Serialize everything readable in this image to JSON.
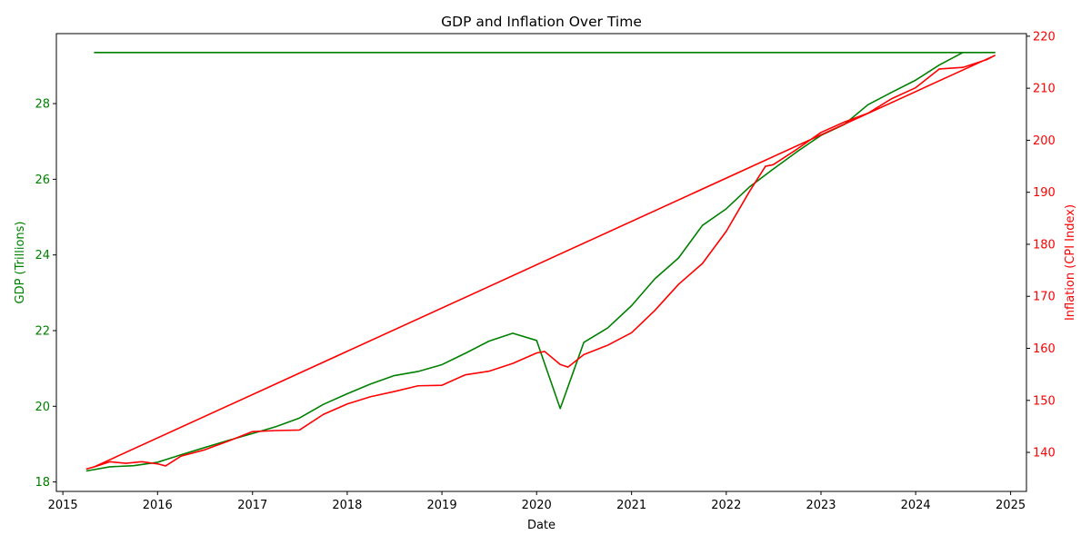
{
  "colors": {
    "gdp": "#008000",
    "inflation": "#ff0000",
    "axis": "#000000",
    "background": "#ffffff"
  },
  "chart_data": {
    "type": "line",
    "title": "GDP and Inflation Over Time",
    "xlabel": "Date",
    "ylabel_left": "GDP (Trillions)",
    "ylabel_right": "Inflation (CPI Index)",
    "grid": false,
    "x_axis": {
      "type": "date",
      "range": [
        "2014-12-07",
        "2025-03-03"
      ],
      "tick_labels": [
        "2015",
        "2016",
        "2017",
        "2018",
        "2019",
        "2020",
        "2021",
        "2022",
        "2023",
        "2024",
        "2025"
      ]
    },
    "y_left": {
      "range": [
        17.75,
        29.85
      ],
      "tick_labels": [
        "18",
        "20",
        "22",
        "24",
        "26",
        "28"
      ]
    },
    "y_right": {
      "range": [
        132.5,
        220.5
      ],
      "tick_labels": [
        "140",
        "150",
        "160",
        "170",
        "180",
        "190",
        "200",
        "210",
        "220"
      ]
    },
    "series": [
      {
        "name": "GDP (Trillions)",
        "axis": "left",
        "color": "#008000",
        "points": [
          [
            "2015-04-01",
            18.29
          ],
          [
            "2015-07-01",
            18.4
          ],
          [
            "2015-10-01",
            18.43
          ],
          [
            "2016-01-01",
            18.52
          ],
          [
            "2016-04-01",
            18.72
          ],
          [
            "2016-07-01",
            18.91
          ],
          [
            "2016-10-01",
            19.1
          ],
          [
            "2017-01-01",
            19.28
          ],
          [
            "2017-04-01",
            19.46
          ],
          [
            "2017-07-01",
            19.69
          ],
          [
            "2017-10-01",
            20.05
          ],
          [
            "2018-01-01",
            20.33
          ],
          [
            "2018-04-01",
            20.59
          ],
          [
            "2018-07-01",
            20.81
          ],
          [
            "2018-10-01",
            20.92
          ],
          [
            "2019-01-01",
            21.1
          ],
          [
            "2019-04-01",
            21.4
          ],
          [
            "2019-07-01",
            21.72
          ],
          [
            "2019-10-01",
            21.93
          ],
          [
            "2020-01-01",
            21.74
          ],
          [
            "2020-04-01",
            19.94
          ],
          [
            "2020-07-01",
            21.69
          ],
          [
            "2020-10-01",
            22.07
          ],
          [
            "2021-01-01",
            22.66
          ],
          [
            "2021-04-01",
            23.37
          ],
          [
            "2021-07-01",
            23.92
          ],
          [
            "2021-10-01",
            24.78
          ],
          [
            "2022-01-01",
            25.22
          ],
          [
            "2022-04-01",
            25.8
          ],
          [
            "2022-07-01",
            26.27
          ],
          [
            "2022-10-01",
            26.73
          ],
          [
            "2023-01-01",
            27.16
          ],
          [
            "2023-04-01",
            27.45
          ],
          [
            "2023-07-01",
            27.97
          ],
          [
            "2023-10-01",
            28.3
          ],
          [
            "2024-01-01",
            28.62
          ],
          [
            "2024-04-01",
            29.02
          ],
          [
            "2024-07-01",
            29.35
          ],
          [
            "2024-10-01",
            29.35
          ],
          [
            "2024-11-01",
            29.35
          ],
          [
            "2015-05-01",
            29.35
          ]
        ]
      },
      {
        "name": "Inflation (CPI Index)",
        "axis": "right",
        "color": "#ff0000",
        "points": [
          [
            "2015-04-01",
            136.8
          ],
          [
            "2015-05-01",
            137.2
          ],
          [
            "2015-07-01",
            138.2
          ],
          [
            "2015-09-01",
            137.9
          ],
          [
            "2015-11-01",
            138.2
          ],
          [
            "2016-01-01",
            137.8
          ],
          [
            "2016-02-01",
            137.4
          ],
          [
            "2016-04-01",
            139.3
          ],
          [
            "2016-07-01",
            140.5
          ],
          [
            "2016-10-01",
            142.2
          ],
          [
            "2017-01-01",
            144.0
          ],
          [
            "2017-04-01",
            144.2
          ],
          [
            "2017-07-01",
            144.3
          ],
          [
            "2017-10-01",
            147.3
          ],
          [
            "2018-01-01",
            149.3
          ],
          [
            "2018-04-01",
            150.7
          ],
          [
            "2018-07-01",
            151.7
          ],
          [
            "2018-10-01",
            152.8
          ],
          [
            "2019-01-01",
            152.9
          ],
          [
            "2019-04-01",
            154.9
          ],
          [
            "2019-07-01",
            155.6
          ],
          [
            "2019-10-01",
            157.1
          ],
          [
            "2020-01-01",
            159.1
          ],
          [
            "2020-02-01",
            159.4
          ],
          [
            "2020-04-01",
            156.9
          ],
          [
            "2020-05-01",
            156.4
          ],
          [
            "2020-07-01",
            158.8
          ],
          [
            "2020-10-01",
            160.6
          ],
          [
            "2021-01-01",
            163.0
          ],
          [
            "2021-04-01",
            167.3
          ],
          [
            "2021-07-01",
            172.3
          ],
          [
            "2021-10-01",
            176.3
          ],
          [
            "2022-01-01",
            182.5
          ],
          [
            "2022-04-01",
            190.2
          ],
          [
            "2022-06-01",
            195.0
          ],
          [
            "2022-07-01",
            195.3
          ],
          [
            "2022-10-01",
            198.3
          ],
          [
            "2023-01-01",
            201.5
          ],
          [
            "2023-04-01",
            203.5
          ],
          [
            "2023-07-01",
            205.2
          ],
          [
            "2023-10-01",
            208.0
          ],
          [
            "2024-01-01",
            210.1
          ],
          [
            "2024-04-01",
            213.7
          ],
          [
            "2024-07-01",
            214.0
          ],
          [
            "2024-10-01",
            215.5
          ],
          [
            "2024-11-01",
            216.3
          ],
          [
            "2015-05-01",
            137.2
          ]
        ]
      }
    ]
  }
}
